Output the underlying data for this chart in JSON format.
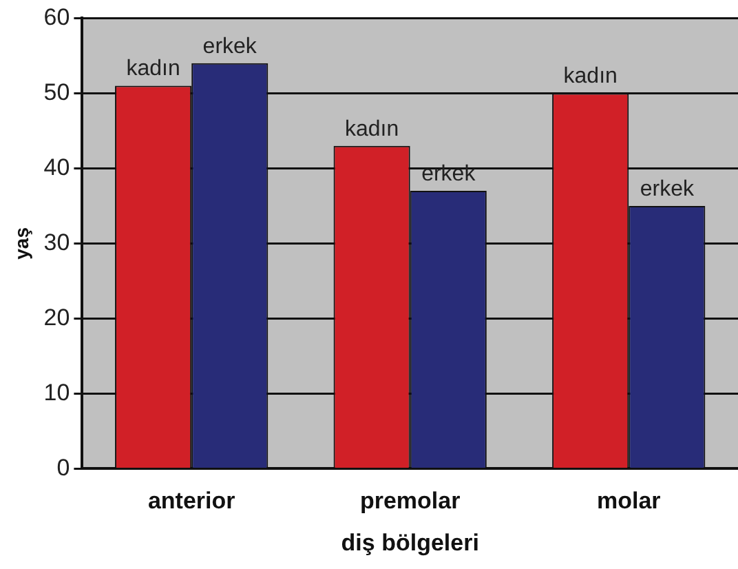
{
  "chart_data": {
    "type": "bar",
    "xlabel": "diş bölgeleri",
    "ylabel": "yaş",
    "categories": [
      "anterior",
      "premolar",
      "molar"
    ],
    "series": [
      {
        "name": "kadın",
        "color": "#d12027",
        "values": [
          51,
          43,
          50
        ]
      },
      {
        "name": "erkek",
        "color": "#282c78",
        "values": [
          54,
          37,
          35
        ]
      }
    ],
    "ylim": [
      0,
      60
    ],
    "yticks": [
      0,
      10,
      20,
      30,
      40,
      50,
      60
    ],
    "grid": "y",
    "legend": false
  }
}
